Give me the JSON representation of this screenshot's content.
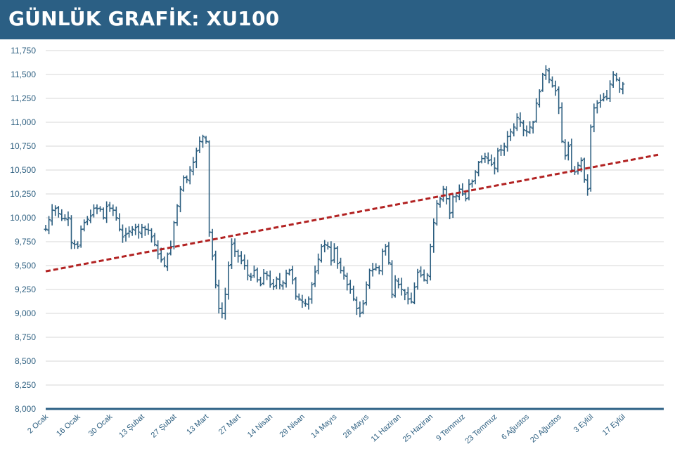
{
  "header": {
    "title": "GÜNLÜK GRAFİK: XU100"
  },
  "colors": {
    "header_bg": "#2b5f84",
    "bars": "#2d5f80",
    "trend": "#b22222",
    "grid": "#d7d7d7",
    "axis": "#2b5f84",
    "text": "#2d5f80"
  },
  "chart_data": {
    "type": "ohlc",
    "title": "GÜNLÜK GRAFİK: XU100",
    "xlabel": "",
    "ylabel": "",
    "ylim": [
      8000,
      11750
    ],
    "yticks": [
      8000,
      8250,
      8500,
      8750,
      9000,
      9250,
      9500,
      9750,
      10000,
      10250,
      10500,
      10750,
      11000,
      11250,
      11500,
      11750
    ],
    "ytick_labels": [
      "8,000",
      "8,250",
      "8,500",
      "8,750",
      "9,000",
      "9,250",
      "9,500",
      "9,750",
      "10,000",
      "10,250",
      "10,500",
      "10,750",
      "11,000",
      "11,250",
      "11,500",
      "11,750"
    ],
    "xlim_index": [
      0,
      191
    ],
    "xticks": [
      {
        "index": 0,
        "label": "2 Ocak"
      },
      {
        "index": 10,
        "label": "16 Ocak"
      },
      {
        "index": 20,
        "label": "30 Ocak"
      },
      {
        "index": 30,
        "label": "13 Şubat"
      },
      {
        "index": 40,
        "label": "27 Şubat"
      },
      {
        "index": 50,
        "label": "13 Mart"
      },
      {
        "index": 60,
        "label": "27 Mart"
      },
      {
        "index": 70,
        "label": "14 Nisan"
      },
      {
        "index": 80,
        "label": "29 Nisan"
      },
      {
        "index": 90,
        "label": "14 Mayıs"
      },
      {
        "index": 100,
        "label": "28 Mayıs"
      },
      {
        "index": 110,
        "label": "11 Haziran"
      },
      {
        "index": 120,
        "label": "25 Haziran"
      },
      {
        "index": 130,
        "label": "9 Temmuz"
      },
      {
        "index": 140,
        "label": "23 Temmuz"
      },
      {
        "index": 150,
        "label": "6 Ağustos"
      },
      {
        "index": 160,
        "label": "20 Ağustos"
      },
      {
        "index": 170,
        "label": "3 Eylül"
      },
      {
        "index": 180,
        "label": "17 Eylül"
      }
    ],
    "close_path": [
      [
        0,
        9880
      ],
      [
        2,
        10080
      ],
      [
        3,
        10100
      ],
      [
        5,
        9990
      ],
      [
        7,
        10000
      ],
      [
        8,
        9740
      ],
      [
        9,
        9720
      ],
      [
        10,
        9700
      ],
      [
        11,
        9880
      ],
      [
        12,
        9950
      ],
      [
        14,
        10020
      ],
      [
        15,
        10100
      ],
      [
        17,
        10090
      ],
      [
        18,
        10000
      ],
      [
        19,
        10120
      ],
      [
        21,
        10080
      ],
      [
        22,
        10000
      ],
      [
        23,
        9880
      ],
      [
        24,
        9800
      ],
      [
        26,
        9860
      ],
      [
        28,
        9900
      ],
      [
        29,
        9850
      ],
      [
        30,
        9900
      ],
      [
        31,
        9880
      ],
      [
        32,
        9870
      ],
      [
        33,
        9800
      ],
      [
        34,
        9720
      ],
      [
        35,
        9620
      ],
      [
        36,
        9560
      ],
      [
        37,
        9500
      ],
      [
        38,
        9620
      ],
      [
        39,
        9700
      ],
      [
        40,
        9950
      ],
      [
        42,
        10300
      ],
      [
        43,
        10420
      ],
      [
        44,
        10400
      ],
      [
        45,
        10500
      ],
      [
        46,
        10580
      ],
      [
        47,
        10700
      ],
      [
        48,
        10800
      ],
      [
        49,
        10850
      ],
      [
        50,
        10800
      ],
      [
        51,
        9850
      ],
      [
        52,
        9600
      ],
      [
        53,
        9300
      ],
      [
        54,
        9050
      ],
      [
        55,
        9000
      ],
      [
        56,
        9200
      ],
      [
        57,
        9500
      ],
      [
        58,
        9720
      ],
      [
        59,
        9650
      ],
      [
        60,
        9600
      ],
      [
        62,
        9500
      ],
      [
        63,
        9400
      ],
      [
        64,
        9380
      ],
      [
        65,
        9450
      ],
      [
        66,
        9350
      ],
      [
        67,
        9300
      ],
      [
        68,
        9420
      ],
      [
        69,
        9400
      ],
      [
        70,
        9300
      ],
      [
        71,
        9280
      ],
      [
        72,
        9360
      ],
      [
        73,
        9300
      ],
      [
        74,
        9320
      ],
      [
        75,
        9420
      ],
      [
        76,
        9450
      ],
      [
        77,
        9350
      ],
      [
        78,
        9180
      ],
      [
        79,
        9150
      ],
      [
        80,
        9120
      ],
      [
        81,
        9100
      ],
      [
        82,
        9150
      ],
      [
        83,
        9300
      ],
      [
        86,
        9700
      ],
      [
        87,
        9720
      ],
      [
        88,
        9700
      ],
      [
        89,
        9550
      ],
      [
        90,
        9680
      ],
      [
        91,
        9520
      ],
      [
        92,
        9450
      ],
      [
        93,
        9400
      ],
      [
        94,
        9300
      ],
      [
        95,
        9250
      ],
      [
        96,
        9150
      ],
      [
        97,
        9050
      ],
      [
        98,
        9000
      ],
      [
        99,
        9100
      ],
      [
        100,
        9300
      ],
      [
        101,
        9450
      ],
      [
        102,
        9460
      ],
      [
        103,
        9480
      ],
      [
        104,
        9450
      ],
      [
        105,
        9650
      ],
      [
        106,
        9700
      ],
      [
        107,
        9530
      ],
      [
        108,
        9200
      ],
      [
        109,
        9350
      ],
      [
        110,
        9300
      ],
      [
        111,
        9250
      ],
      [
        112,
        9200
      ],
      [
        113,
        9150
      ],
      [
        114,
        9120
      ],
      [
        116,
        9430
      ],
      [
        117,
        9400
      ],
      [
        118,
        9350
      ],
      [
        119,
        9400
      ],
      [
        120,
        9700
      ],
      [
        121,
        9950
      ],
      [
        122,
        10150
      ],
      [
        123,
        10200
      ],
      [
        124,
        10300
      ],
      [
        125,
        10200
      ],
      [
        126,
        10050
      ],
      [
        127,
        10220
      ],
      [
        128,
        10230
      ],
      [
        129,
        10300
      ],
      [
        130,
        10250
      ],
      [
        131,
        10200
      ],
      [
        132,
        10350
      ],
      [
        133,
        10380
      ],
      [
        135,
        10580
      ],
      [
        136,
        10620
      ],
      [
        137,
        10640
      ],
      [
        138,
        10600
      ],
      [
        139,
        10560
      ],
      [
        140,
        10520
      ],
      [
        141,
        10700
      ],
      [
        142,
        10710
      ],
      [
        143,
        10750
      ],
      [
        144,
        10850
      ],
      [
        145,
        10900
      ],
      [
        146,
        10950
      ],
      [
        147,
        11050
      ],
      [
        148,
        11000
      ],
      [
        149,
        10920
      ],
      [
        150,
        10900
      ],
      [
        151,
        10950
      ],
      [
        152,
        11000
      ],
      [
        153,
        11200
      ],
      [
        154,
        11320
      ],
      [
        155,
        11500
      ],
      [
        156,
        11550
      ],
      [
        157,
        11450
      ],
      [
        158,
        11380
      ],
      [
        159,
        11330
      ],
      [
        160,
        11150
      ],
      [
        161,
        10800
      ],
      [
        162,
        10650
      ],
      [
        163,
        10750
      ],
      [
        164,
        10500
      ],
      [
        165,
        10480
      ],
      [
        166,
        10550
      ],
      [
        167,
        10600
      ],
      [
        168,
        10400
      ],
      [
        169,
        10300
      ],
      [
        170,
        10950
      ],
      [
        171,
        11150
      ],
      [
        172,
        11200
      ],
      [
        173,
        11230
      ],
      [
        174,
        11260
      ],
      [
        175,
        11250
      ],
      [
        176,
        11400
      ],
      [
        177,
        11500
      ],
      [
        178,
        11450
      ],
      [
        179,
        11350
      ],
      [
        180,
        11400
      ]
    ],
    "trendline": {
      "from": {
        "index": 0,
        "value": 9440
      },
      "to": {
        "index": 191,
        "value": 10660
      },
      "style": "dashed"
    },
    "legend": "none",
    "grid": "horizontal"
  }
}
